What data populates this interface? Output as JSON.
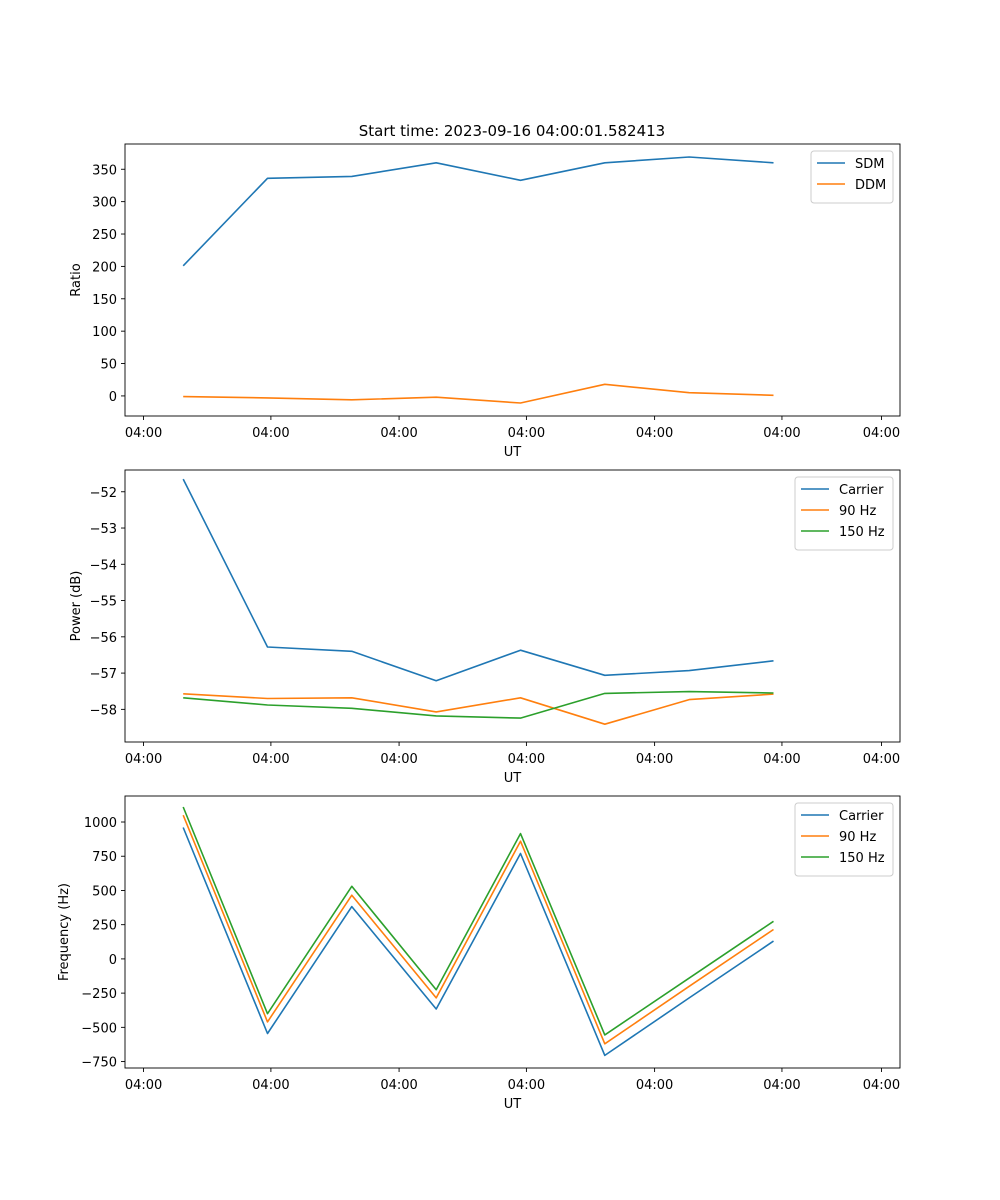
{
  "figure": {
    "title": "Start time: 2023-09-16 04:00:01.582413"
  },
  "chart_data": [
    {
      "type": "line",
      "title": "Start time: 2023-09-16 04:00:01.582413",
      "xlabel": "UT",
      "ylabel": "Ratio",
      "x": [
        1,
        2,
        3,
        4,
        5,
        6,
        7,
        8
      ],
      "xlim": [
        0.31,
        9.5
      ],
      "xticks": [
        0.53,
        2.04,
        3.56,
        5.07,
        6.59,
        8.1,
        9.28
      ],
      "xtick_labels": [
        "04:00",
        "04:00",
        "04:00",
        "04:00",
        "04:00",
        "04:00",
        "04:00"
      ],
      "ylim": [
        -31,
        389
      ],
      "yticks": [
        0,
        50,
        100,
        150,
        200,
        250,
        300,
        350
      ],
      "yticks_labels": [
        "0",
        "50",
        "100",
        "150",
        "200",
        "250",
        "300",
        "350"
      ],
      "legend": "top-right",
      "series": [
        {
          "name": "SDM",
          "color": "#1f77b4",
          "values": [
            201,
            336,
            339,
            360,
            333,
            360,
            369,
            360
          ]
        },
        {
          "name": "DDM",
          "color": "#ff7f0e",
          "values": [
            -1,
            -3,
            -6,
            -2,
            -11,
            18,
            5,
            1
          ]
        }
      ]
    },
    {
      "type": "line",
      "title": "",
      "xlabel": "UT",
      "ylabel": "Power (dB)",
      "x": [
        1,
        2,
        3,
        4,
        5,
        6,
        7,
        8
      ],
      "xlim": [
        0.31,
        9.5
      ],
      "xticks": [
        0.53,
        2.04,
        3.56,
        5.07,
        6.59,
        8.1,
        9.28
      ],
      "xtick_labels": [
        "04:00",
        "04:00",
        "04:00",
        "04:00",
        "04:00",
        "04:00",
        "04:00"
      ],
      "ylim": [
        -58.9,
        -51.4
      ],
      "yticks": [
        -58,
        -57,
        -56,
        -55,
        -54,
        -53,
        -52
      ],
      "yticks_labels": [
        "−58",
        "−57",
        "−56",
        "−55",
        "−54",
        "−53",
        "−52"
      ],
      "legend": "top-right",
      "series": [
        {
          "name": "Carrier",
          "color": "#1f77b4",
          "values": [
            -51.65,
            -56.28,
            -56.4,
            -57.21,
            -56.37,
            -57.06,
            -56.93,
            -56.66
          ]
        },
        {
          "name": "90 Hz",
          "color": "#ff7f0e",
          "values": [
            -57.57,
            -57.7,
            -57.68,
            -58.07,
            -57.68,
            -58.41,
            -57.73,
            -57.58
          ]
        },
        {
          "name": "150 Hz",
          "color": "#2ca02c",
          "values": [
            -57.68,
            -57.88,
            -57.97,
            -58.18,
            -58.24,
            -57.56,
            -57.51,
            -57.55
          ]
        }
      ]
    },
    {
      "type": "line",
      "title": "",
      "xlabel": "UT",
      "ylabel": "Frequency (Hz)",
      "x": [
        1,
        2,
        3,
        4,
        5,
        6,
        7,
        8
      ],
      "xlim": [
        0.31,
        9.5
      ],
      "xticks": [
        0.53,
        2.04,
        3.56,
        5.07,
        6.59,
        8.1,
        9.28
      ],
      "xtick_labels": [
        "04:00",
        "04:00",
        "04:00",
        "04:00",
        "04:00",
        "04:00",
        "04:00"
      ],
      "ylim": [
        -797,
        1190
      ],
      "yticks": [
        -750,
        -500,
        -250,
        0,
        250,
        500,
        750,
        1000
      ],
      "yticks_labels": [
        "−750",
        "−500",
        "−250",
        "0",
        "250",
        "500",
        "750",
        "1000"
      ],
      "legend": "top-right",
      "series": [
        {
          "name": "Carrier",
          "color": "#1f77b4",
          "values": [
            960,
            -545,
            382,
            -366,
            770,
            -705,
            -285,
            130
          ]
        },
        {
          "name": "90 Hz",
          "color": "#ff7f0e",
          "values": [
            1050,
            -460,
            465,
            -285,
            860,
            -620,
            -200,
            215
          ]
        },
        {
          "name": "150 Hz",
          "color": "#2ca02c",
          "values": [
            1110,
            -400,
            530,
            -225,
            915,
            -555,
            -140,
            275
          ]
        }
      ]
    }
  ]
}
